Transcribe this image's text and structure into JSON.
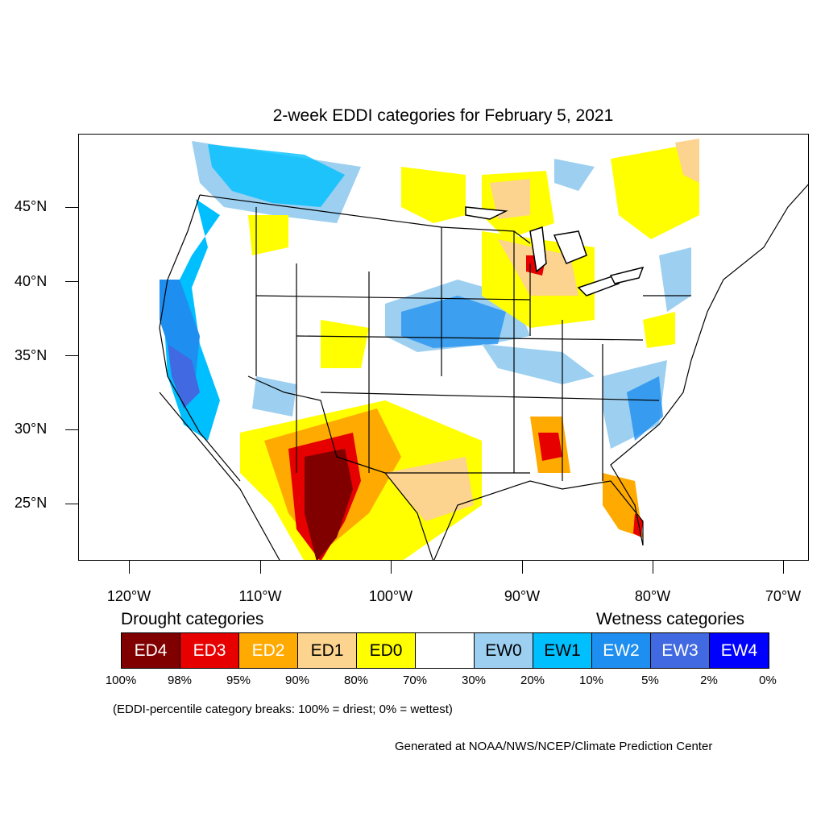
{
  "title": "2-week EDDI categories for February 5, 2021",
  "map": {
    "lat_labels": [
      "45°N",
      "40°N",
      "35°N",
      "30°N",
      "25°N"
    ],
    "lon_labels": [
      "120°W",
      "110°W",
      "100°W",
      "90°W",
      "80°W",
      "70°W"
    ]
  },
  "legend": {
    "drought_label": "Drought categories",
    "wetness_label": "Wetness categories",
    "categories": [
      {
        "label": "ED4",
        "color": "#800000",
        "text_color": "#ffffff"
      },
      {
        "label": "ED3",
        "color": "#e60000",
        "text_color": "#ffffff"
      },
      {
        "label": "ED2",
        "color": "#ffaa00",
        "text_color": "#ffffff"
      },
      {
        "label": "ED1",
        "color": "#fcd38f",
        "text_color": "#000000"
      },
      {
        "label": "ED0",
        "color": "#ffff00",
        "text_color": "#000000"
      },
      {
        "label": "",
        "color": "#ffffff",
        "text_color": "#000000"
      },
      {
        "label": "EW0",
        "color": "#9ccff0",
        "text_color": "#000000"
      },
      {
        "label": "EW1",
        "color": "#00bfff",
        "text_color": "#000000"
      },
      {
        "label": "EW2",
        "color": "#1e8ff0",
        "text_color": "#ffffff"
      },
      {
        "label": "EW3",
        "color": "#4169e1",
        "text_color": "#ffffff"
      },
      {
        "label": "EW4",
        "color": "#0000ff",
        "text_color": "#ffffff"
      }
    ],
    "breaks": [
      "100%",
      "98%",
      "95%",
      "90%",
      "80%",
      "70%",
      "30%",
      "20%",
      "10%",
      "5%",
      "2%",
      "0%"
    ]
  },
  "note": "(EDDI-percentile category breaks: 100% = driest; 0% = wettest)",
  "credit": "Generated at NOAA/NWS/NCEP/Climate Prediction Center"
}
